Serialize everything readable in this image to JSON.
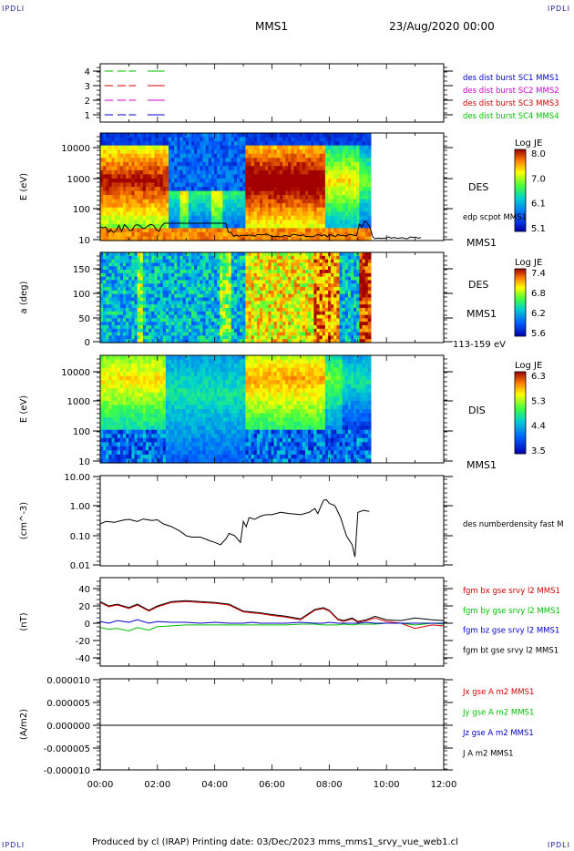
{
  "header": {
    "corner_tl": "IPDLI",
    "corner_tr": "IPDLI",
    "corner_bl": "IPDLI",
    "corner_br": "IPDLI",
    "spacecraft": "MMS1",
    "date": "23/Aug/2020 00:00"
  },
  "footer": {
    "text": "Produced by cl (IRAP)   Printing date: 03/Dec/2023   mms_mms1_srvy_vue_web1.cl"
  },
  "colors": {
    "red": "#d40000",
    "green": "#00c000",
    "blue": "#0000cc",
    "magenta": "#d000d0",
    "black": "#000000"
  },
  "chart_data": [
    {
      "id": "burst",
      "type": "line",
      "yticks": [
        "1",
        "2",
        "3",
        "4"
      ],
      "legend": [
        {
          "label": "des dist burst SC1 MMS1",
          "color": "#0000cc"
        },
        {
          "label": "des dist burst SC2 MMS2",
          "color": "#d000d0"
        },
        {
          "label": "des dist burst SC3 MMS3",
          "color": "#d40000"
        },
        {
          "label": "des dist burst SC4 MMS4",
          "color": "#00c000"
        }
      ]
    },
    {
      "id": "des_energy",
      "type": "heatmap",
      "ylabel": "E (eV)",
      "yticks": [
        "10",
        "100",
        "1000",
        "10000"
      ],
      "colorbar": {
        "title": "Log JE",
        "ticks": [
          "8.0",
          "7.0",
          "6.1",
          "5.1"
        ]
      },
      "labels": {
        "instrument": "DES",
        "overlay": "edp scpot MMS1",
        "spacecraft": "MMS1"
      }
    },
    {
      "id": "des_pitch",
      "type": "heatmap",
      "ylabel": "a (deg)",
      "yticks": [
        "0",
        "50",
        "100",
        "150"
      ],
      "colorbar": {
        "title": "Log JE",
        "ticks": [
          "7.4",
          "6.8",
          "6.2",
          "5.6"
        ]
      },
      "labels": {
        "instrument": "DES",
        "spacecraft": "MMS1",
        "range": "113-159 eV"
      }
    },
    {
      "id": "dis_energy",
      "type": "heatmap",
      "ylabel": "E (eV)",
      "yticks": [
        "10",
        "100",
        "1000",
        "10000"
      ],
      "colorbar": {
        "title": "Log JE",
        "ticks": [
          "6.3",
          "5.3",
          "4.4",
          "3.5"
        ]
      },
      "labels": {
        "instrument": "DIS",
        "spacecraft": "MMS1"
      }
    },
    {
      "id": "density",
      "type": "line",
      "ylabel": "(cm^-3)",
      "yticks": [
        "0.01",
        "0.10",
        "1.00",
        "10.00"
      ],
      "legend": [
        {
          "label": "des numberdensity fast M",
          "color": "#000000"
        }
      ],
      "series": [
        {
          "x": [
            0,
            0.2,
            0.5,
            0.8,
            1.0,
            1.3,
            1.5,
            1.8,
            2.0,
            2.2,
            2.5,
            2.8,
            3.0,
            3.2,
            3.5,
            3.8,
            4.0,
            4.2,
            4.4,
            4.5,
            4.7,
            4.9,
            5.0,
            5.1,
            5.2,
            5.4,
            5.6,
            5.8,
            6.0,
            6.3,
            6.6,
            7.0,
            7.3,
            7.5,
            7.6,
            7.8,
            7.9,
            8.0,
            8.2,
            8.4,
            8.5,
            8.6,
            8.8,
            8.9,
            9.0,
            9.2,
            9.4
          ],
          "y": [
            0.25,
            0.3,
            0.28,
            0.33,
            0.35,
            0.3,
            0.36,
            0.32,
            0.34,
            0.25,
            0.2,
            0.14,
            0.1,
            0.09,
            0.09,
            0.07,
            0.06,
            0.05,
            0.08,
            0.12,
            0.1,
            0.06,
            0.3,
            0.2,
            0.4,
            0.35,
            0.45,
            0.5,
            0.5,
            0.6,
            0.55,
            0.5,
            0.6,
            0.8,
            0.55,
            1.5,
            1.6,
            1.2,
            1.0,
            0.4,
            0.2,
            0.1,
            0.05,
            0.02,
            0.6,
            0.7,
            0.65
          ]
        }
      ]
    },
    {
      "id": "fgm",
      "type": "line",
      "ylabel": "(nT)",
      "yticks": [
        "-40",
        "-20",
        "0",
        "20",
        "40"
      ],
      "legend": [
        {
          "label": "fgm bx gse srvy l2 MMS1",
          "color": "#d40000"
        },
        {
          "label": "fgm by gse srvy l2 MMS1",
          "color": "#00c000"
        },
        {
          "label": "fgm bz gse srvy l2 MMS1",
          "color": "#0000cc"
        },
        {
          "label": "fgm bt gse srvy l2 MMS1",
          "color": "#000000"
        }
      ],
      "series": [
        {
          "name": "bt",
          "x": [
            0,
            0.3,
            0.6,
            1.0,
            1.3,
            1.7,
            2.0,
            2.5,
            3.0,
            3.5,
            4.0,
            4.5,
            5.0,
            5.3,
            5.6,
            6.0,
            6.5,
            7.0,
            7.5,
            7.8,
            8.0,
            8.3,
            8.5,
            8.8,
            9.0,
            9.3,
            9.6,
            10.0,
            10.5,
            11.0,
            11.3,
            11.6,
            12.0
          ],
          "y": [
            25,
            20,
            22,
            18,
            22,
            15,
            20,
            25,
            26,
            25,
            24,
            22,
            14,
            13,
            12,
            10,
            8,
            5,
            16,
            18,
            15,
            5,
            3,
            6,
            2,
            4,
            8,
            4,
            3,
            6,
            5,
            4,
            3
          ]
        },
        {
          "name": "bx",
          "x": [
            0,
            0.3,
            0.6,
            1.0,
            1.3,
            1.7,
            2.0,
            2.5,
            3.0,
            3.5,
            4.0,
            4.5,
            5.0,
            5.3,
            5.6,
            6.0,
            6.5,
            7.0,
            7.5,
            7.8,
            8.0,
            8.3,
            8.5,
            8.8,
            9.0,
            9.3,
            9.6,
            10.0,
            10.5,
            11.0,
            11.3,
            11.6,
            12.0
          ],
          "y": [
            24,
            19,
            21,
            17,
            21,
            14,
            19,
            24,
            25,
            24,
            23,
            21,
            13,
            12,
            11,
            9,
            7,
            4,
            15,
            17,
            14,
            4,
            2,
            5,
            1,
            3,
            6,
            2,
            0,
            -6,
            -4,
            -2,
            -3
          ]
        },
        {
          "name": "by",
          "x": [
            0,
            0.3,
            0.6,
            1.0,
            1.3,
            1.7,
            2.0,
            2.5,
            3.0,
            3.5,
            4.0,
            4.5,
            5.0,
            5.3,
            5.6,
            6.0,
            6.5,
            7.0,
            7.5,
            7.8,
            8.0,
            8.3,
            8.5,
            8.8,
            9.0,
            9.3,
            9.6,
            10.0,
            10.5,
            11.0,
            11.3,
            11.6,
            12.0
          ],
          "y": [
            -5,
            -7,
            -6,
            -9,
            -5,
            -8,
            -4,
            -3,
            -2,
            -2,
            -2,
            -2,
            -2,
            -2,
            -2,
            -2,
            -2,
            -1,
            -1,
            -2,
            -2,
            -2,
            -1,
            -2,
            -1,
            -1,
            -1,
            0,
            0,
            -2,
            -1,
            0,
            -1
          ]
        },
        {
          "name": "bz",
          "x": [
            0,
            0.3,
            0.6,
            1.0,
            1.3,
            1.7,
            2.0,
            2.5,
            3.0,
            3.5,
            4.0,
            4.5,
            5.0,
            5.3,
            5.6,
            6.0,
            6.5,
            7.0,
            7.5,
            7.8,
            8.0,
            8.3,
            8.5,
            8.8,
            9.0,
            9.3,
            9.6,
            10.0,
            10.5,
            11.0,
            11.3,
            11.6,
            12.0
          ],
          "y": [
            2,
            0,
            3,
            1,
            4,
            0,
            2,
            1,
            1,
            0,
            1,
            0,
            0,
            1,
            0,
            0,
            0,
            1,
            0,
            0,
            1,
            0,
            0,
            0,
            0,
            1,
            0,
            0,
            0,
            0,
            0,
            0,
            0
          ]
        }
      ]
    },
    {
      "id": "current",
      "type": "line",
      "ylabel": "(A/m2)",
      "yticks": [
        "-0.000010",
        "-0.000005",
        "0.000000",
        "0.000005",
        "0.000010"
      ],
      "legend": [
        {
          "label": "Jx gse A m2 MMS1",
          "color": "#d40000"
        },
        {
          "label": "Jy gse A m2 MMS1",
          "color": "#00c000"
        },
        {
          "label": "Jz gse A m2 MMS1",
          "color": "#0000cc"
        },
        {
          "label": "J A m2 MMS1",
          "color": "#000000"
        }
      ],
      "series": [
        {
          "x": [
            0,
            12
          ],
          "y": [
            0,
            0
          ]
        }
      ]
    }
  ],
  "xaxis": {
    "ticks": [
      "00:00",
      "02:00",
      "04:00",
      "06:00",
      "08:00",
      "10:00",
      "12:00"
    ],
    "range": [
      0,
      12
    ]
  }
}
